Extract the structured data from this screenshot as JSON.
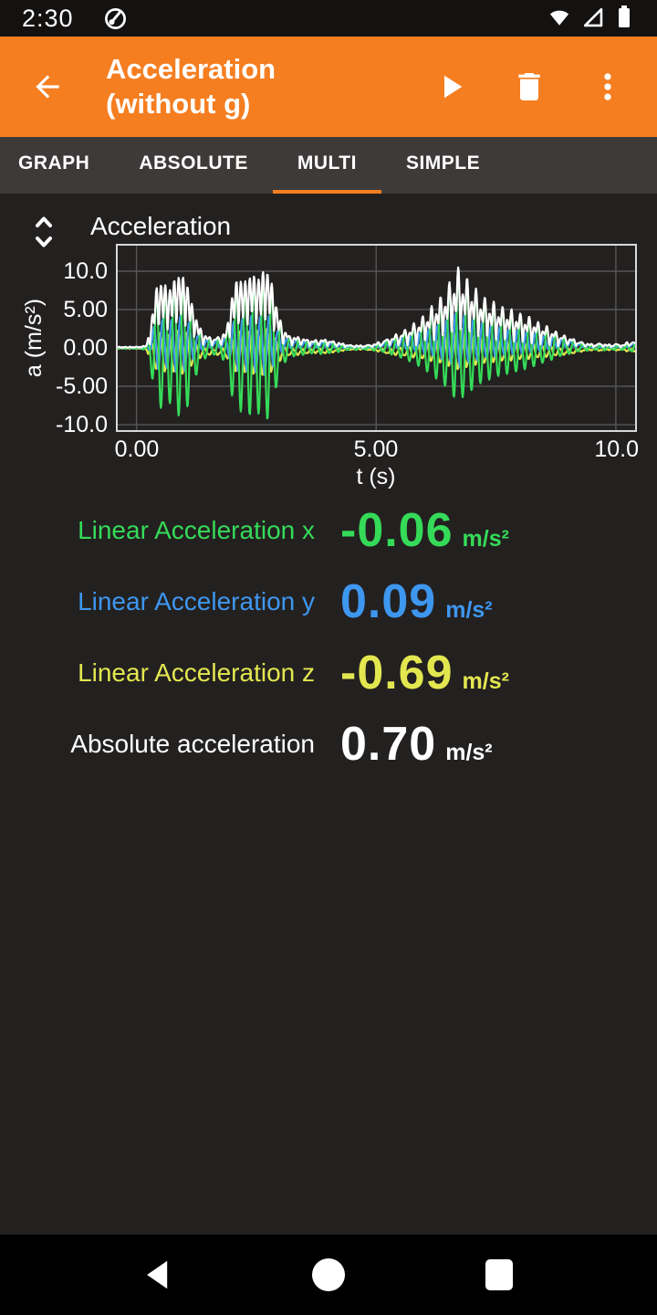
{
  "status_bar": {
    "time": "2:30",
    "icons": [
      "phyphox-notification-icon",
      "wifi-icon",
      "cell-signal-icon",
      "battery-icon"
    ]
  },
  "app_bar": {
    "title_line1": "Acceleration",
    "title_line2": "(without g)",
    "icons": [
      "back-arrow-icon",
      "play-icon",
      "delete-icon",
      "overflow-menu-icon"
    ]
  },
  "tabs": [
    {
      "label": "GRAPH",
      "active": false
    },
    {
      "label": "ABSOLUTE",
      "active": false
    },
    {
      "label": "MULTI",
      "active": true
    },
    {
      "label": "SIMPLE",
      "active": false
    }
  ],
  "colors": {
    "accent_orange": "#f57e21",
    "series_x_green": "#35db58",
    "series_y_blue": "#3e97ef",
    "series_z_yellow": "#e3e74f",
    "series_abs_white": "#ffffff",
    "grid": "#565656",
    "plot_border": "#d9d9d9",
    "background": "#232020",
    "tab_bar": "#3e3a39"
  },
  "chart_data": {
    "type": "line",
    "title": "Acceleration",
    "xlabel": "t (s)",
    "ylabel": "a (m/s²)",
    "xlim": [
      -0.43,
      10.44
    ],
    "ylim": [
      -10.95,
      13.57
    ],
    "grid": true,
    "x_ticks": [
      {
        "value": 0,
        "label": "0.00"
      },
      {
        "value": 5,
        "label": "5.00"
      },
      {
        "value": 10,
        "label": "10.0"
      }
    ],
    "y_ticks": [
      {
        "value": 10,
        "label": "10.0"
      },
      {
        "value": 5,
        "label": "5.00"
      },
      {
        "value": 0,
        "label": "0.00"
      },
      {
        "value": -5,
        "label": "-5.00"
      },
      {
        "value": -10,
        "label": "-10.0"
      }
    ],
    "oscillation_hz": 5.4,
    "sample_step_s": 0.012,
    "envelope_points": [
      [
        -0.43,
        0.05
      ],
      [
        0.1,
        0.08
      ],
      [
        0.22,
        0.3
      ],
      [
        0.3,
        3
      ],
      [
        0.42,
        7.5
      ],
      [
        0.55,
        8
      ],
      [
        0.68,
        7
      ],
      [
        0.8,
        8.5
      ],
      [
        0.92,
        9
      ],
      [
        1.05,
        8
      ],
      [
        1.15,
        5.5
      ],
      [
        1.3,
        2.5
      ],
      [
        1.45,
        1.2
      ],
      [
        1.6,
        0.9
      ],
      [
        1.75,
        1.1
      ],
      [
        1.88,
        2
      ],
      [
        1.98,
        6
      ],
      [
        2.1,
        8.5
      ],
      [
        2.25,
        8
      ],
      [
        2.4,
        9
      ],
      [
        2.55,
        8.5
      ],
      [
        2.7,
        9.8
      ],
      [
        2.82,
        8
      ],
      [
        2.92,
        5
      ],
      [
        3.05,
        2.2
      ],
      [
        3.2,
        1.2
      ],
      [
        3.45,
        0.9
      ],
      [
        3.7,
        0.7
      ],
      [
        3.95,
        0.8
      ],
      [
        4.2,
        0.5
      ],
      [
        4.45,
        0.25
      ],
      [
        4.7,
        0.2
      ],
      [
        4.95,
        0.35
      ],
      [
        5.15,
        0.7
      ],
      [
        5.35,
        1.2
      ],
      [
        5.6,
        2.2
      ],
      [
        5.85,
        3.2
      ],
      [
        6.1,
        4.8
      ],
      [
        6.35,
        6.5
      ],
      [
        6.55,
        8.5
      ],
      [
        6.7,
        10.3
      ],
      [
        6.85,
        9.2
      ],
      [
        7.0,
        8
      ],
      [
        7.15,
        7
      ],
      [
        7.3,
        6.2
      ],
      [
        7.5,
        5.6
      ],
      [
        7.7,
        5
      ],
      [
        7.9,
        4.6
      ],
      [
        8.1,
        4.1
      ],
      [
        8.3,
        3.5
      ],
      [
        8.5,
        2.8
      ],
      [
        8.7,
        2.1
      ],
      [
        8.9,
        1.4
      ],
      [
        9.1,
        0.9
      ],
      [
        9.3,
        0.55
      ],
      [
        9.5,
        0.35
      ],
      [
        9.7,
        0.45
      ],
      [
        9.85,
        0.3
      ],
      [
        10.0,
        0.4
      ],
      [
        10.15,
        0.3
      ],
      [
        10.3,
        0.7
      ],
      [
        10.44,
        0.5
      ]
    ],
    "negative_scale_points": [
      [
        -0.43,
        1
      ],
      [
        4.5,
        1
      ],
      [
        5.5,
        0.68
      ],
      [
        10.44,
        0.68
      ]
    ],
    "series": [
      {
        "name": "Linear Acceleration x",
        "color": "#35db58",
        "scale": 1.0,
        "phase": 0.0,
        "bias": 0.0
      },
      {
        "name": "Linear Acceleration y",
        "color": "#3e97ef",
        "scale": 0.42,
        "phase": 1.9,
        "bias": 0.45
      },
      {
        "name": "Linear Acceleration z",
        "color": "#e3e74f",
        "scale": 0.32,
        "phase": 3.6,
        "bias": -0.55
      },
      {
        "name": "Absolute acceleration",
        "color": "#ffffff",
        "derived": "magnitude"
      }
    ],
    "draw_order": [
      2,
      1,
      0,
      3
    ]
  },
  "readouts": [
    {
      "label": "Linear Acceleration x",
      "value": "-0.06",
      "unit": "m/s²",
      "color": "#35db58"
    },
    {
      "label": "Linear Acceleration y",
      "value": "0.09",
      "unit": "m/s²",
      "color": "#3e97ef"
    },
    {
      "label": "Linear Acceleration z",
      "value": "-0.69",
      "unit": "m/s²",
      "color": "#e3e74f"
    },
    {
      "label": "Absolute acceleration",
      "value": "0.70",
      "unit": "m/s²",
      "color": "#ffffff"
    }
  ],
  "nav_bar": {
    "icons": [
      "nav-back-icon",
      "nav-home-icon",
      "nav-recents-icon"
    ]
  }
}
